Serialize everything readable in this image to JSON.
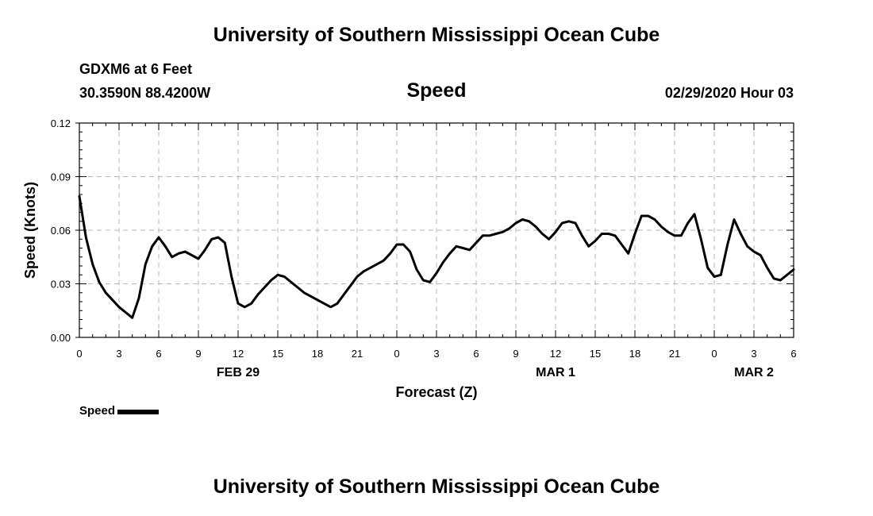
{
  "header": {
    "title": "University of Southern Mississippi Ocean Cube",
    "station": "GDXM6 at 6 Feet",
    "coords": "30.3590N 88.4200W",
    "variable": "Speed",
    "date": "02/29/2020 Hour 03",
    "footer_title": "University of Southern Mississippi Ocean Cube"
  },
  "legend": {
    "label": "Speed"
  },
  "chart_data": {
    "type": "line",
    "title": "Speed",
    "xlabel": "Forecast (Z)",
    "ylabel": "Speed (Knots)",
    "ylim": [
      0,
      0.12
    ],
    "xlim": [
      0,
      54
    ],
    "x_unit": "hours since FEB 29 00Z",
    "yticks": [
      0.0,
      0.03,
      0.06,
      0.09,
      0.12
    ],
    "ytick_labels": [
      "0.00",
      "0.03",
      "0.06",
      "0.09",
      "0.12"
    ],
    "xticks": [
      0,
      3,
      6,
      9,
      12,
      15,
      18,
      21,
      24,
      27,
      30,
      33,
      36,
      39,
      42,
      45,
      48,
      51,
      54
    ],
    "xtick_labels": [
      "0",
      "3",
      "6",
      "9",
      "12",
      "15",
      "18",
      "21",
      "0",
      "3",
      "6",
      "9",
      "12",
      "15",
      "18",
      "21",
      "0",
      "3",
      "6"
    ],
    "day_labels": [
      {
        "x": 12,
        "label": "FEB 29"
      },
      {
        "x": 36,
        "label": "MAR 1"
      },
      {
        "x": 51,
        "label": "MAR 2"
      }
    ],
    "grid": true,
    "color": "#000000",
    "series": [
      {
        "name": "Speed",
        "x": [
          0,
          0.5,
          1,
          1.5,
          2,
          2.5,
          3,
          3.5,
          4,
          4.5,
          5,
          5.5,
          6,
          6.5,
          7,
          7.5,
          8,
          8.5,
          9,
          9.5,
          10,
          10.5,
          11,
          11.5,
          12,
          12.5,
          13,
          13.5,
          14,
          14.5,
          15,
          15.5,
          16,
          16.5,
          17,
          17.5,
          18,
          18.5,
          19,
          19.5,
          20,
          20.5,
          21,
          21.5,
          22,
          22.5,
          23,
          23.5,
          24,
          24.5,
          25,
          25.5,
          26,
          26.5,
          27,
          27.5,
          28,
          28.5,
          29,
          29.5,
          30,
          30.5,
          31,
          31.5,
          32,
          32.5,
          33,
          33.5,
          34,
          34.5,
          35,
          35.5,
          36,
          36.5,
          37,
          37.5,
          38,
          38.5,
          39,
          39.5,
          40,
          40.5,
          41,
          41.5,
          42,
          42.5,
          43,
          43.5,
          44,
          44.5,
          45,
          45.5,
          46,
          46.5,
          47,
          47.5,
          48,
          48.5,
          49,
          49.5,
          50,
          50.5,
          51,
          51.5,
          52,
          52.5,
          53,
          53.5,
          54
        ],
        "values": [
          0.079,
          0.056,
          0.041,
          0.031,
          0.025,
          0.021,
          0.017,
          0.014,
          0.011,
          0.022,
          0.041,
          0.051,
          0.056,
          0.051,
          0.045,
          0.047,
          0.048,
          0.046,
          0.044,
          0.049,
          0.055,
          0.056,
          0.053,
          0.034,
          0.019,
          0.017,
          0.019,
          0.024,
          0.028,
          0.032,
          0.035,
          0.034,
          0.031,
          0.028,
          0.025,
          0.023,
          0.021,
          0.019,
          0.017,
          0.019,
          0.024,
          0.029,
          0.034,
          0.037,
          0.039,
          0.041,
          0.043,
          0.047,
          0.052,
          0.052,
          0.048,
          0.038,
          0.032,
          0.031,
          0.036,
          0.042,
          0.047,
          0.051,
          0.05,
          0.049,
          0.053,
          0.057,
          0.057,
          0.058,
          0.059,
          0.061,
          0.064,
          0.066,
          0.065,
          0.062,
          0.058,
          0.055,
          0.059,
          0.064,
          0.065,
          0.064,
          0.057,
          0.051,
          0.054,
          0.058,
          0.058,
          0.057,
          0.052,
          0.047,
          0.058,
          0.068,
          0.068,
          0.066,
          0.062,
          0.059,
          0.057,
          0.057,
          0.064,
          0.069,
          0.055,
          0.039,
          0.034,
          0.035,
          0.052,
          0.066,
          0.058,
          0.051,
          0.048,
          0.046,
          0.039,
          0.033,
          0.032,
          0.035,
          0.038
        ]
      }
    ]
  }
}
